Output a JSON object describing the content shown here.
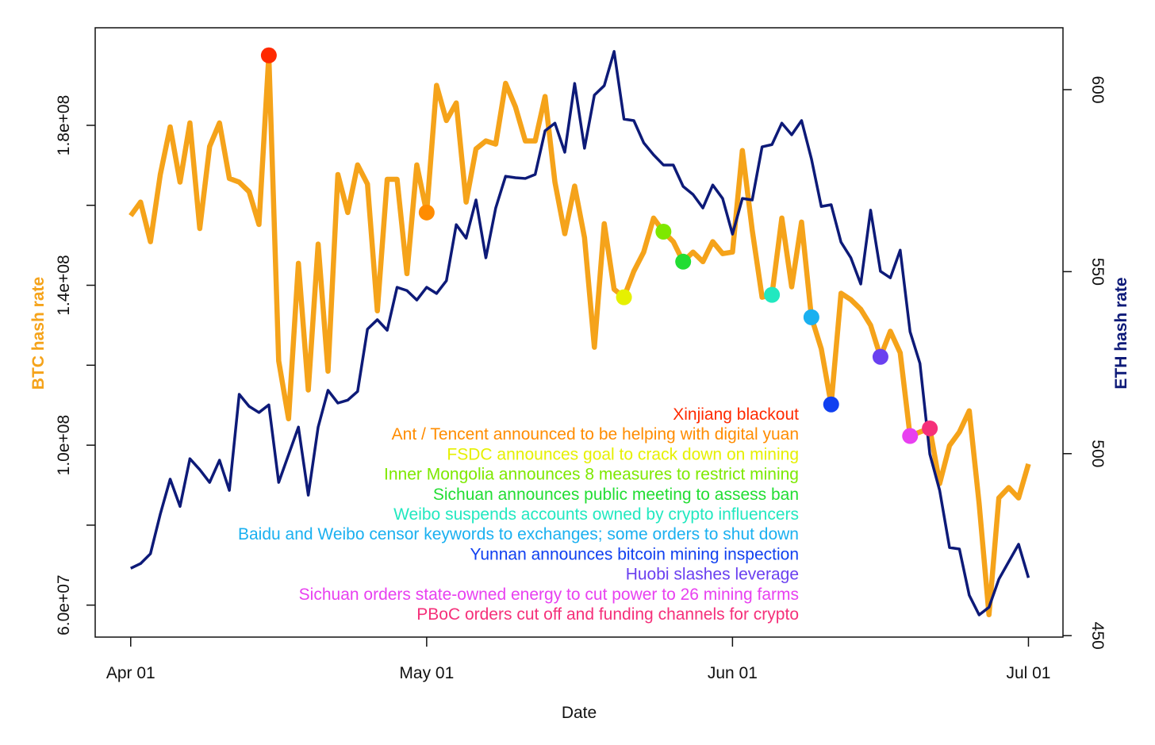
{
  "chart_data": {
    "type": "line",
    "xlabel": "Date",
    "ylabel": "BTC hash rate",
    "y2label": "ETH hash rate",
    "x": [
      0,
      1,
      2,
      3,
      4,
      5,
      6,
      7,
      8,
      9,
      10,
      11,
      12,
      13,
      14,
      15,
      16,
      17,
      18,
      19,
      20,
      21,
      22,
      23,
      24,
      25,
      26,
      27,
      28,
      29,
      30,
      31,
      32,
      33,
      34,
      35,
      36,
      37,
      38,
      39,
      40,
      41,
      42,
      43,
      44,
      45,
      46,
      47,
      48,
      49,
      50,
      51,
      52,
      53,
      54,
      55,
      56,
      57,
      58,
      59,
      60,
      61,
      62,
      63,
      64,
      65,
      66,
      67,
      68,
      69,
      70,
      71,
      72,
      73,
      74,
      75,
      76,
      77,
      78,
      79,
      80,
      81,
      82,
      83,
      84,
      85,
      86,
      87,
      88,
      89,
      90,
      91
    ],
    "xlim": [
      -3.6,
      94.5
    ],
    "xticks": [
      {
        "value": 0,
        "label": "Apr 01"
      },
      {
        "value": 30,
        "label": "May 01"
      },
      {
        "value": 61,
        "label": "Jun 01"
      },
      {
        "value": 91,
        "label": "Jul 01"
      }
    ],
    "ylim": [
      52000000,
      204400000
    ],
    "yticks": [
      {
        "value": 60000000,
        "label": "6.0e+07"
      },
      {
        "value": 80000000,
        "label": null
      },
      {
        "value": 100000000,
        "label": "1.0e+08"
      },
      {
        "value": 120000000,
        "label": null
      },
      {
        "value": 140000000,
        "label": "1.4e+08"
      },
      {
        "value": 160000000,
        "label": null
      },
      {
        "value": 180000000,
        "label": "1.8e+08"
      }
    ],
    "y2lim": [
      449.6,
      617
    ],
    "y2ticks": [
      450,
      500,
      550,
      600
    ],
    "series": [
      {
        "color": "#f5a31a",
        "values": [
          157400000.0,
          160800000.0,
          150900000.0,
          167700000.0,
          179600000.0,
          165800000.0,
          180600000.0,
          154200000.0,
          174700000.0,
          180600000.0,
          166700000.0,
          165800000.0,
          163400000.0,
          155200000.0,
          197500000.0,
          121100000.0,
          106600000.0,
          145500000.0,
          113800000.0,
          150300000.0,
          118500000.0,
          167700000.0,
          158200000.0,
          170100000.0,
          165300000.0,
          133600000.0,
          166500000.0,
          166500000.0,
          142900000.0,
          170100000.0,
          158200000.0,
          190000000.0,
          181200000.0,
          185600000.0,
          160800000.0,
          174100000.0,
          176100000.0,
          175300000.0,
          190500000.0,
          184600000.0,
          176100000.0,
          176100000.0,
          187200000.0,
          165800000.0,
          152900000.0,
          164800000.0,
          151900000.0,
          124500000.0,
          155400000.0,
          139000000.0,
          137000000.0,
          143500000.0,
          148300000.0,
          156800000.0,
          153400000.0,
          150900000.0,
          145900000.0,
          148300000.0,
          145900000.0,
          150900000.0,
          147900000.0,
          148300000.0,
          173700000.0,
          153800000.0,
          137000000.0,
          137600000.0,
          156800000.0,
          139600000.0,
          155800000.0,
          132000000.0,
          124100000.0,
          110200000.0,
          138000000.0,
          136400000.0,
          134000000.0,
          130000000.0,
          122100000.0,
          128500000.0,
          123100000.0,
          102300000.0,
          103300000.0,
          104200000.0,
          90400000.0,
          99900000.0,
          103300000.0,
          108600000.0,
          85400000.0,
          57600000.0,
          86800000.0,
          89400000.0,
          86800000.0,
          95300000.0
        ]
      },
      {
        "color": "#0d1a78",
        "axis": "y2",
        "values": [
          468.5,
          469.8,
          472.5,
          483.4,
          493.0,
          485.5,
          498.6,
          495.6,
          492.1,
          498.2,
          489.9,
          516.3,
          513.0,
          511.3,
          513.4,
          492.1,
          499.7,
          507.3,
          488.6,
          507.3,
          517.4,
          513.9,
          514.7,
          517.1,
          534.2,
          536.8,
          533.9,
          545.7,
          544.8,
          542.2,
          545.7,
          544.0,
          547.5,
          562.9,
          559.2,
          569.7,
          553.8,
          567.5,
          576.2,
          575.8,
          575.6,
          576.7,
          588.7,
          590.8,
          582.8,
          601.7,
          583.9,
          598.5,
          601.1,
          610.5,
          591.9,
          591.5,
          585.4,
          582.1,
          579.3,
          579.3,
          573.4,
          571.2,
          567.5,
          573.8,
          570.1,
          560.3,
          570.1,
          569.7,
          584.3,
          584.9,
          590.8,
          587.6,
          591.5,
          581.0,
          567.9,
          568.4,
          558.1,
          553.8,
          546.6,
          566.9,
          550.1,
          548.3,
          555.9,
          533.5,
          524.8,
          499.9,
          489.9,
          474.2,
          473.8,
          461.1,
          455.7,
          457.8,
          465.5,
          470.3,
          475.1,
          465.9
        ]
      }
    ],
    "events": [
      {
        "text": "Xinjiang blackout",
        "color": "#ff2a00",
        "x": 14
      },
      {
        "text": "Ant / Tencent announced to be helping with digital yuan",
        "color": "#ff8c00",
        "x": 30
      },
      {
        "text": "FSDC announces goal to crack down on mining",
        "color": "#e6f000",
        "x": 50
      },
      {
        "text": "Inner Mongolia announces 8 measures to restrict mining",
        "color": "#7ee800",
        "x": 54
      },
      {
        "text": "Sichuan announces public meeting to assess ban",
        "color": "#22dd33",
        "x": 56
      },
      {
        "text": "Weibo suspends accounts owned by crypto influencers",
        "color": "#22e8c0",
        "x": 65
      },
      {
        "text": "Baidu and Weibo censor keywords to exchanges; some orders to shut down",
        "color": "#1ab0f0",
        "x": 69
      },
      {
        "text": "Yunnan announces bitcoin mining inspection",
        "color": "#1040f0",
        "x": 71
      },
      {
        "text": "Huobi slashes leverage",
        "color": "#6a40f0",
        "x": 76
      },
      {
        "text": "Sichuan orders state-owned energy to cut power to 26 mining farms",
        "color": "#e840f0",
        "x": 79
      },
      {
        "text": "PBoC orders cut off and funding channels for crypto",
        "color": "#f5307a",
        "x": 81
      }
    ]
  }
}
